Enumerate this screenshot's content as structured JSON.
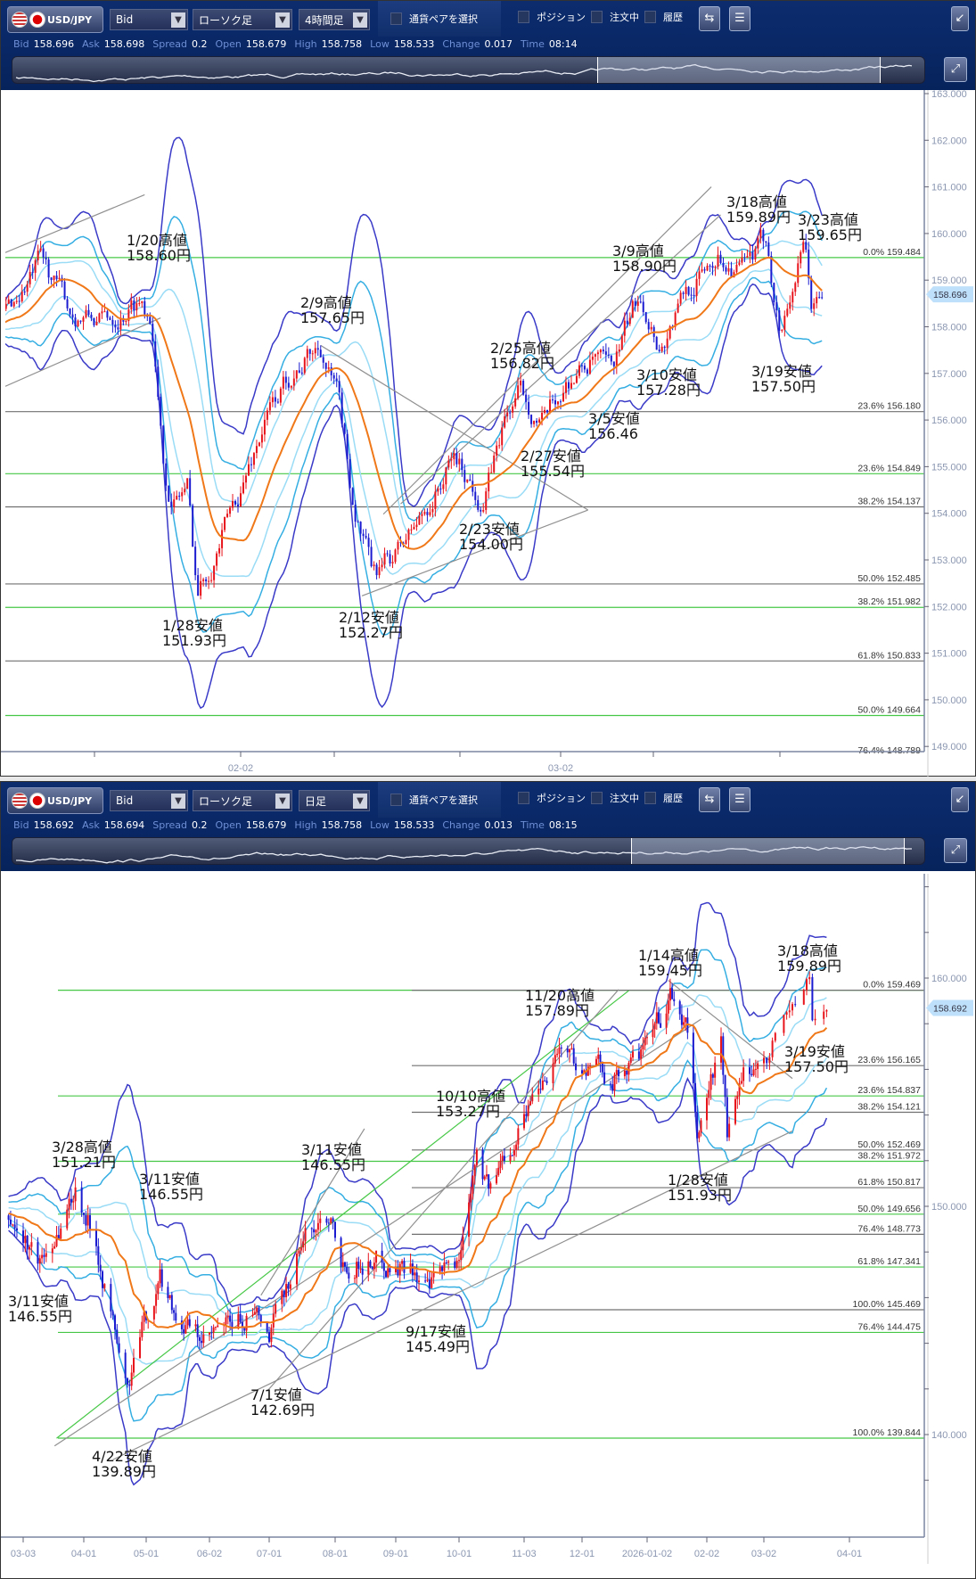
{
  "panels": [
    {
      "header": {
        "pair": "USD/JPY",
        "price_type": "Bid",
        "chart_type": "ローソク足",
        "timeframe": "4時間足",
        "pair_select": "通貨ペアを選択",
        "checkboxes": [
          "ポジション",
          "注文中",
          "履歴"
        ]
      },
      "quote": [
        {
          "label": "Bid",
          "value": "158.696"
        },
        {
          "label": "Ask",
          "value": "158.698"
        },
        {
          "label": "Spread",
          "value": "0.2"
        },
        {
          "label": "Open",
          "value": "158.679"
        },
        {
          "label": "High",
          "value": "158.758"
        },
        {
          "label": "Low",
          "value": "158.533"
        },
        {
          "label": "Change",
          "value": "0.017"
        },
        {
          "label": "Time",
          "value": "08:14"
        }
      ],
      "icons": [
        "us-flag-icon",
        "jp-flag-icon",
        "chevron-down-icon",
        "chart-settings-icon",
        "list-icon",
        "collapse-icon",
        "expand-icon"
      ]
    },
    {
      "header": {
        "pair": "USD/JPY",
        "price_type": "Bid",
        "chart_type": "ローソク足",
        "timeframe": "日足",
        "pair_select": "通貨ペアを選択",
        "checkboxes": [
          "ポジション",
          "注文中",
          "履歴"
        ]
      },
      "quote": [
        {
          "label": "Bid",
          "value": "158.692"
        },
        {
          "label": "Ask",
          "value": "158.694"
        },
        {
          "label": "Spread",
          "value": "0.2"
        },
        {
          "label": "Open",
          "value": "158.679"
        },
        {
          "label": "High",
          "value": "158.758"
        },
        {
          "label": "Low",
          "value": "158.533"
        },
        {
          "label": "Change",
          "value": "0.013"
        },
        {
          "label": "Time",
          "value": "08:15"
        }
      ]
    }
  ],
  "chart_data": [
    {
      "type": "candlestick",
      "timeframe": "4時間足",
      "colors": {
        "up": "#e8141c",
        "down": "#1a1ad0",
        "ma": "#f07818",
        "band1": "#9adcf6",
        "band2": "#35aee2",
        "band3": "#3a3ac8",
        "fib_green": "#46c846",
        "fib_gray": "#707070",
        "trend": "#909090"
      },
      "ylim": [
        148.6,
        163.1
      ],
      "y_ticks": [
        "149.000",
        "150.000",
        "151.000",
        "152.000",
        "153.000",
        "154.000",
        "155.000",
        "156.000",
        "157.000",
        "158.000",
        "159.000",
        "160.000",
        "161.000",
        "162.000",
        "163.000"
      ],
      "x_ticks": [
        "02-02",
        "03-02"
      ],
      "current_price": "158.696",
      "price_path": [
        [
          "2026-01-12 00",
          158.1
        ],
        [
          "2026-01-14 12",
          159.38
        ],
        [
          "2026-01-16 10",
          158.3
        ],
        [
          "2026-01-20 07",
          158.1
        ],
        [
          "2026-01-22 19",
          158.6
        ],
        [
          "2026-01-23 11",
          158.3
        ],
        [
          "2026-01-26 02",
          155.3
        ],
        [
          "2026-01-26 17",
          154.2
        ],
        [
          "2026-01-27 16",
          154.6
        ],
        [
          "2026-01-28 07",
          152.3
        ],
        [
          "2026-01-29 13",
          153.3
        ],
        [
          "2026-02-02 02",
          154.6
        ],
        [
          "2026-02-03 10",
          155.9
        ],
        [
          "2026-02-05 06",
          157.1
        ],
        [
          "2026-02-09 00",
          157.6
        ],
        [
          "2026-02-10 02",
          156.4
        ],
        [
          "2026-02-11 01",
          154.2
        ],
        [
          "2026-02-12 07",
          152.6
        ],
        [
          "2026-02-13 21",
          153.2
        ],
        [
          "2026-02-17 11",
          154.0
        ],
        [
          "2026-02-19 08",
          155.2
        ],
        [
          "2026-02-23 05",
          154.3
        ],
        [
          "2026-02-24 12",
          156.0
        ],
        [
          "2026-02-25 10",
          156.6
        ],
        [
          "2026-02-27 00",
          155.9
        ],
        [
          "2026-03-02 14",
          156.9
        ],
        [
          "2026-03-04 05",
          157.3
        ],
        [
          "2026-03-05 02",
          156.9
        ],
        [
          "2026-03-09 00",
          158.8
        ],
        [
          "2026-03-10 06",
          157.6
        ],
        [
          "2026-03-11 19",
          158.7
        ],
        [
          "2026-03-13 17",
          159.6
        ],
        [
          "2026-03-17 14",
          159.2
        ],
        [
          "2026-03-18 22",
          159.8
        ],
        [
          "2026-03-19 17",
          157.9
        ],
        [
          "2026-03-20 18",
          159.2
        ],
        [
          "2026-03-23 06",
          159.6
        ],
        [
          "2026-03-23 17",
          158.3
        ],
        [
          "2026-03-24 08",
          158.7
        ]
      ],
      "fib_levels": [
        {
          "pct": "0.0%",
          "value": "159.484",
          "color": "green"
        },
        {
          "pct": "23.6%",
          "value": "156.180",
          "color": "gray"
        },
        {
          "pct": "23.6%",
          "value": "154.849",
          "color": "green"
        },
        {
          "pct": "38.2%",
          "value": "154.137",
          "color": "gray"
        },
        {
          "pct": "50.0%",
          "value": "152.485",
          "color": "gray"
        },
        {
          "pct": "38.2%",
          "value": "151.982",
          "color": "green"
        },
        {
          "pct": "61.8%",
          "value": "150.833",
          "color": "gray"
        },
        {
          "pct": "50.0%",
          "value": "149.664",
          "color": "green"
        },
        {
          "pct": "76.4%",
          "value": "148.789",
          "color": "gray"
        }
      ],
      "trend_lines": [
        [
          [
            "2026-01-12 00",
            159.55
          ],
          [
            "2026-01-23 00",
            160.83
          ]
        ],
        [
          [
            "2026-01-12 00",
            156.68
          ],
          [
            "2026-01-26 00",
            158.19
          ]
        ],
        [
          [
            "2026-02-09 00",
            157.6
          ],
          [
            "2026-03-03 17",
            154.07
          ]
        ],
        [
          [
            "2026-03-03 17",
            154.07
          ],
          [
            "2026-02-11 14",
            152.23
          ]
        ],
        [
          [
            "2026-02-12 22",
            153.98
          ],
          [
            "2026-03-13 10",
            161.0
          ]
        ],
        [
          [
            "2026-02-16 00",
            154.2
          ],
          [
            "2026-03-16 00",
            160.4
          ]
        ]
      ],
      "annotations": [
        {
          "title": "1/20高値",
          "price": "158.60円"
        },
        {
          "title": "2/9高値",
          "price": "157.65円"
        },
        {
          "title": "1/28安値",
          "price": "151.93円"
        },
        {
          "title": "2/12安値",
          "price": "152.27円"
        },
        {
          "title": "2/25高値",
          "price": "156.82円"
        },
        {
          "title": "2/27安値",
          "price": "155.54円"
        },
        {
          "title": "2/23安値",
          "price": "154.00円"
        },
        {
          "title": "3/5安値",
          "price": "156.46"
        },
        {
          "title": "3/9高値",
          "price": "158.90円"
        },
        {
          "title": "3/10安値",
          "price": "157.28円"
        },
        {
          "title": "3/18高値",
          "price": "159.89円"
        },
        {
          "title": "3/23高値",
          "price": "159.65円"
        },
        {
          "title": "3/19安値",
          "price": "157.50円"
        }
      ]
    },
    {
      "type": "candlestick",
      "timeframe": "日足",
      "colors": {
        "up": "#e8141c",
        "down": "#1a1ad0",
        "ma": "#f07818",
        "band1": "#9adcf6",
        "band2": "#35aee2",
        "band3": "#3a3ac8",
        "fib_green": "#46c846",
        "fib_gray": "#707070",
        "trend": "#909090"
      },
      "ylim": [
        135.5,
        164.5
      ],
      "y_ticks": [
        "140.000",
        "150.000",
        "160.000"
      ],
      "x_ticks": [
        "03-03",
        "04-01",
        "05-01",
        "06-02",
        "07-01",
        "08-01",
        "09-01",
        "10-01",
        "11-03",
        "12-01",
        "2026-01-02",
        "02-02",
        "03-02",
        "04-01"
      ],
      "current_price": "158.692",
      "price_path": [
        [
          "2025-02-24",
          149.6
        ],
        [
          "2025-03-11",
          147.4
        ],
        [
          "2025-03-28",
          150.9
        ],
        [
          "2025-04-07",
          148.7
        ],
        [
          "2025-04-14",
          145.4
        ],
        [
          "2025-04-22",
          141.8
        ],
        [
          "2025-04-28",
          144.1
        ],
        [
          "2025-05-08",
          146.8
        ],
        [
          "2025-05-16",
          145.4
        ],
        [
          "2025-05-30",
          143.9
        ],
        [
          "2025-06-13",
          144.5
        ],
        [
          "2025-06-23",
          145.4
        ],
        [
          "2025-07-01",
          143.9
        ],
        [
          "2025-07-16",
          148.5
        ],
        [
          "2025-07-31",
          149.9
        ],
        [
          "2025-08-05",
          147.9
        ],
        [
          "2025-08-25",
          147.7
        ],
        [
          "2025-09-10",
          147.4
        ],
        [
          "2025-09-17",
          146.2
        ],
        [
          "2025-10-01",
          147.5
        ],
        [
          "2025-10-10",
          153.0
        ],
        [
          "2025-10-17",
          150.7
        ],
        [
          "2025-11-03",
          154.3
        ],
        [
          "2025-11-20",
          157.3
        ],
        [
          "2025-12-02",
          156.0
        ],
        [
          "2025-12-17",
          155.8
        ],
        [
          "2026-01-01",
          156.6
        ],
        [
          "2026-01-14",
          159.1
        ],
        [
          "2026-01-22",
          157.9
        ],
        [
          "2026-01-28",
          152.9
        ],
        [
          "2026-02-09",
          157.2
        ],
        [
          "2026-02-12",
          153.0
        ],
        [
          "2026-02-20",
          155.2
        ],
        [
          "2026-03-03",
          156.9
        ],
        [
          "2026-03-13",
          159.1
        ],
        [
          "2026-03-18",
          159.6
        ],
        [
          "2026-03-19",
          157.9
        ],
        [
          "2026-03-24",
          158.7
        ]
      ],
      "fib_levels": [
        {
          "pct": "0.0%",
          "value": "159.469",
          "color": "green"
        },
        {
          "pct": "0.0%",
          "value": "159.469",
          "color": "gray"
        },
        {
          "pct": "23.6%",
          "value": "156.165",
          "color": "gray"
        },
        {
          "pct": "23.6%",
          "value": "154.837",
          "color": "green"
        },
        {
          "pct": "38.2%",
          "value": "154.121",
          "color": "gray"
        },
        {
          "pct": "50.0%",
          "value": "152.469",
          "color": "gray"
        },
        {
          "pct": "38.2%",
          "value": "151.972",
          "color": "green"
        },
        {
          "pct": "61.8%",
          "value": "150.817",
          "color": "gray"
        },
        {
          "pct": "50.0%",
          "value": "149.656",
          "color": "green"
        },
        {
          "pct": "76.4%",
          "value": "148.773",
          "color": "gray"
        },
        {
          "pct": "61.8%",
          "value": "147.341",
          "color": "green"
        },
        {
          "pct": "100.0%",
          "value": "145.469",
          "color": "gray"
        },
        {
          "pct": "76.4%",
          "value": "144.475",
          "color": "green"
        },
        {
          "pct": "100.0%",
          "value": "139.844",
          "color": "green"
        }
      ],
      "trend_lines": [
        {
          "color": "green",
          "points": [
            [
              "2025-03-19",
              139.84
            ],
            [
              "2025-12-24",
              159.45
            ]
          ]
        },
        {
          "color": "gray",
          "points": [
            [
              "2025-03-18",
              139.5
            ],
            [
              "2026-01-30",
              158.2
            ]
          ]
        },
        {
          "color": "gray",
          "points": [
            [
              "2025-04-15",
              138.9
            ],
            [
              "2026-03-12",
              153.3
            ]
          ]
        },
        {
          "color": "gray",
          "points": [
            [
              "2025-06-30",
              141.9
            ],
            [
              "2025-12-19",
              159.5
            ]
          ]
        },
        {
          "color": "gray",
          "points": [
            [
              "2025-06-27",
              146.1
            ],
            [
              "2025-08-16",
              153.4
            ]
          ]
        },
        {
          "color": "gray",
          "points": [
            [
              "2026-01-13",
              159.9
            ],
            [
              "2026-03-12",
              155.6
            ]
          ]
        }
      ],
      "annotations": [
        {
          "title": "3/11安値",
          "price": "146.55円"
        },
        {
          "title": "3/28高値",
          "price": "151.21円"
        },
        {
          "title": "3/11安値",
          "price": "146.55円"
        },
        {
          "title": "4/22安値",
          "price": "139.89円"
        },
        {
          "title": "3/11安値",
          "price": "146.55円"
        },
        {
          "title": "7/1安値",
          "price": "142.69円"
        },
        {
          "title": "9/17安値",
          "price": "145.49円"
        },
        {
          "title": "10/10高値",
          "price": "153.27円"
        },
        {
          "title": "11/20高値",
          "price": "157.89円"
        },
        {
          "title": "1/14高値",
          "price": "159.45円"
        },
        {
          "title": "1/28安値",
          "price": "151.93円"
        },
        {
          "title": "3/18高値",
          "price": "159.89円"
        },
        {
          "title": "3/19安値",
          "price": "157.50円"
        }
      ]
    }
  ]
}
